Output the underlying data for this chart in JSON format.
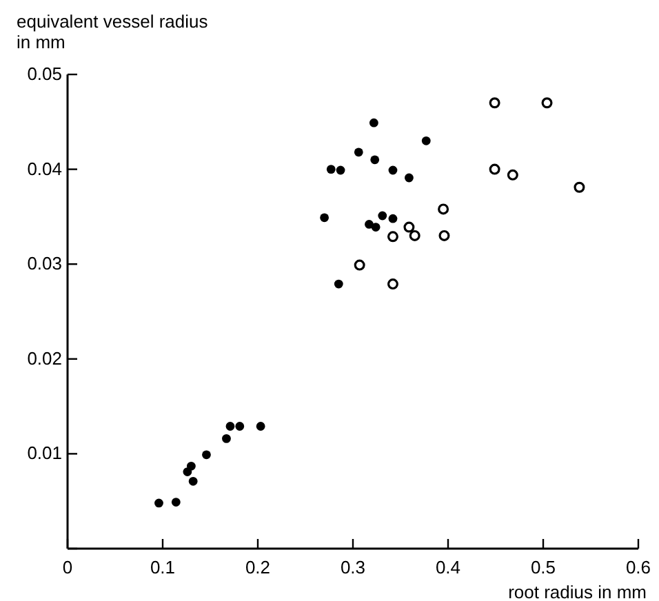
{
  "chart_data": {
    "type": "scatter",
    "xlabel": "root radius in mm",
    "ylabel": "equivalent vessel radius in mm",
    "xlim": [
      0,
      0.6
    ],
    "ylim": [
      0,
      0.05
    ],
    "xticks": [
      0,
      0.1,
      0.2,
      0.3,
      0.4,
      0.5,
      0.6
    ],
    "yticks": [
      {
        "value": 0,
        "label": null
      },
      0.01,
      0.02,
      0.03,
      0.04,
      0.05
    ],
    "grid": false,
    "marker": "circle",
    "series": [
      {
        "color": "#000000",
        "x": [
          0.096,
          0.114,
          0.126,
          0.13,
          0.132,
          0.146,
          0.167,
          0.171,
          0.181,
          0.203,
          0.322,
          0.377,
          0.306,
          0.323,
          0.287,
          0.342,
          0.359,
          0.27,
          0.317,
          0.324,
          0.331,
          0.342,
          0.285,
          0.277
        ],
        "values": [
          0.0048,
          0.0049,
          0.0081,
          0.0087,
          0.0071,
          0.0099,
          0.0116,
          0.0129,
          0.0129,
          0.0129,
          0.0449,
          0.043,
          0.0418,
          0.041,
          0.0399,
          0.0399,
          0.0391,
          0.0349,
          0.0342,
          0.0339,
          0.0351,
          0.0348,
          0.0279,
          0.04
        ]
      },
      {
        "color": "#000000",
        "x": [
          0.449,
          0.504,
          0.449,
          0.468,
          0.538,
          0.395,
          0.359,
          0.342,
          0.365,
          0.396,
          0.307,
          0.342
        ],
        "values": [
          0.047,
          0.047,
          0.04,
          0.0394,
          0.0381,
          0.0358,
          0.0339,
          0.0329,
          0.033,
          0.033,
          0.0299,
          0.0279
        ]
      }
    ]
  }
}
